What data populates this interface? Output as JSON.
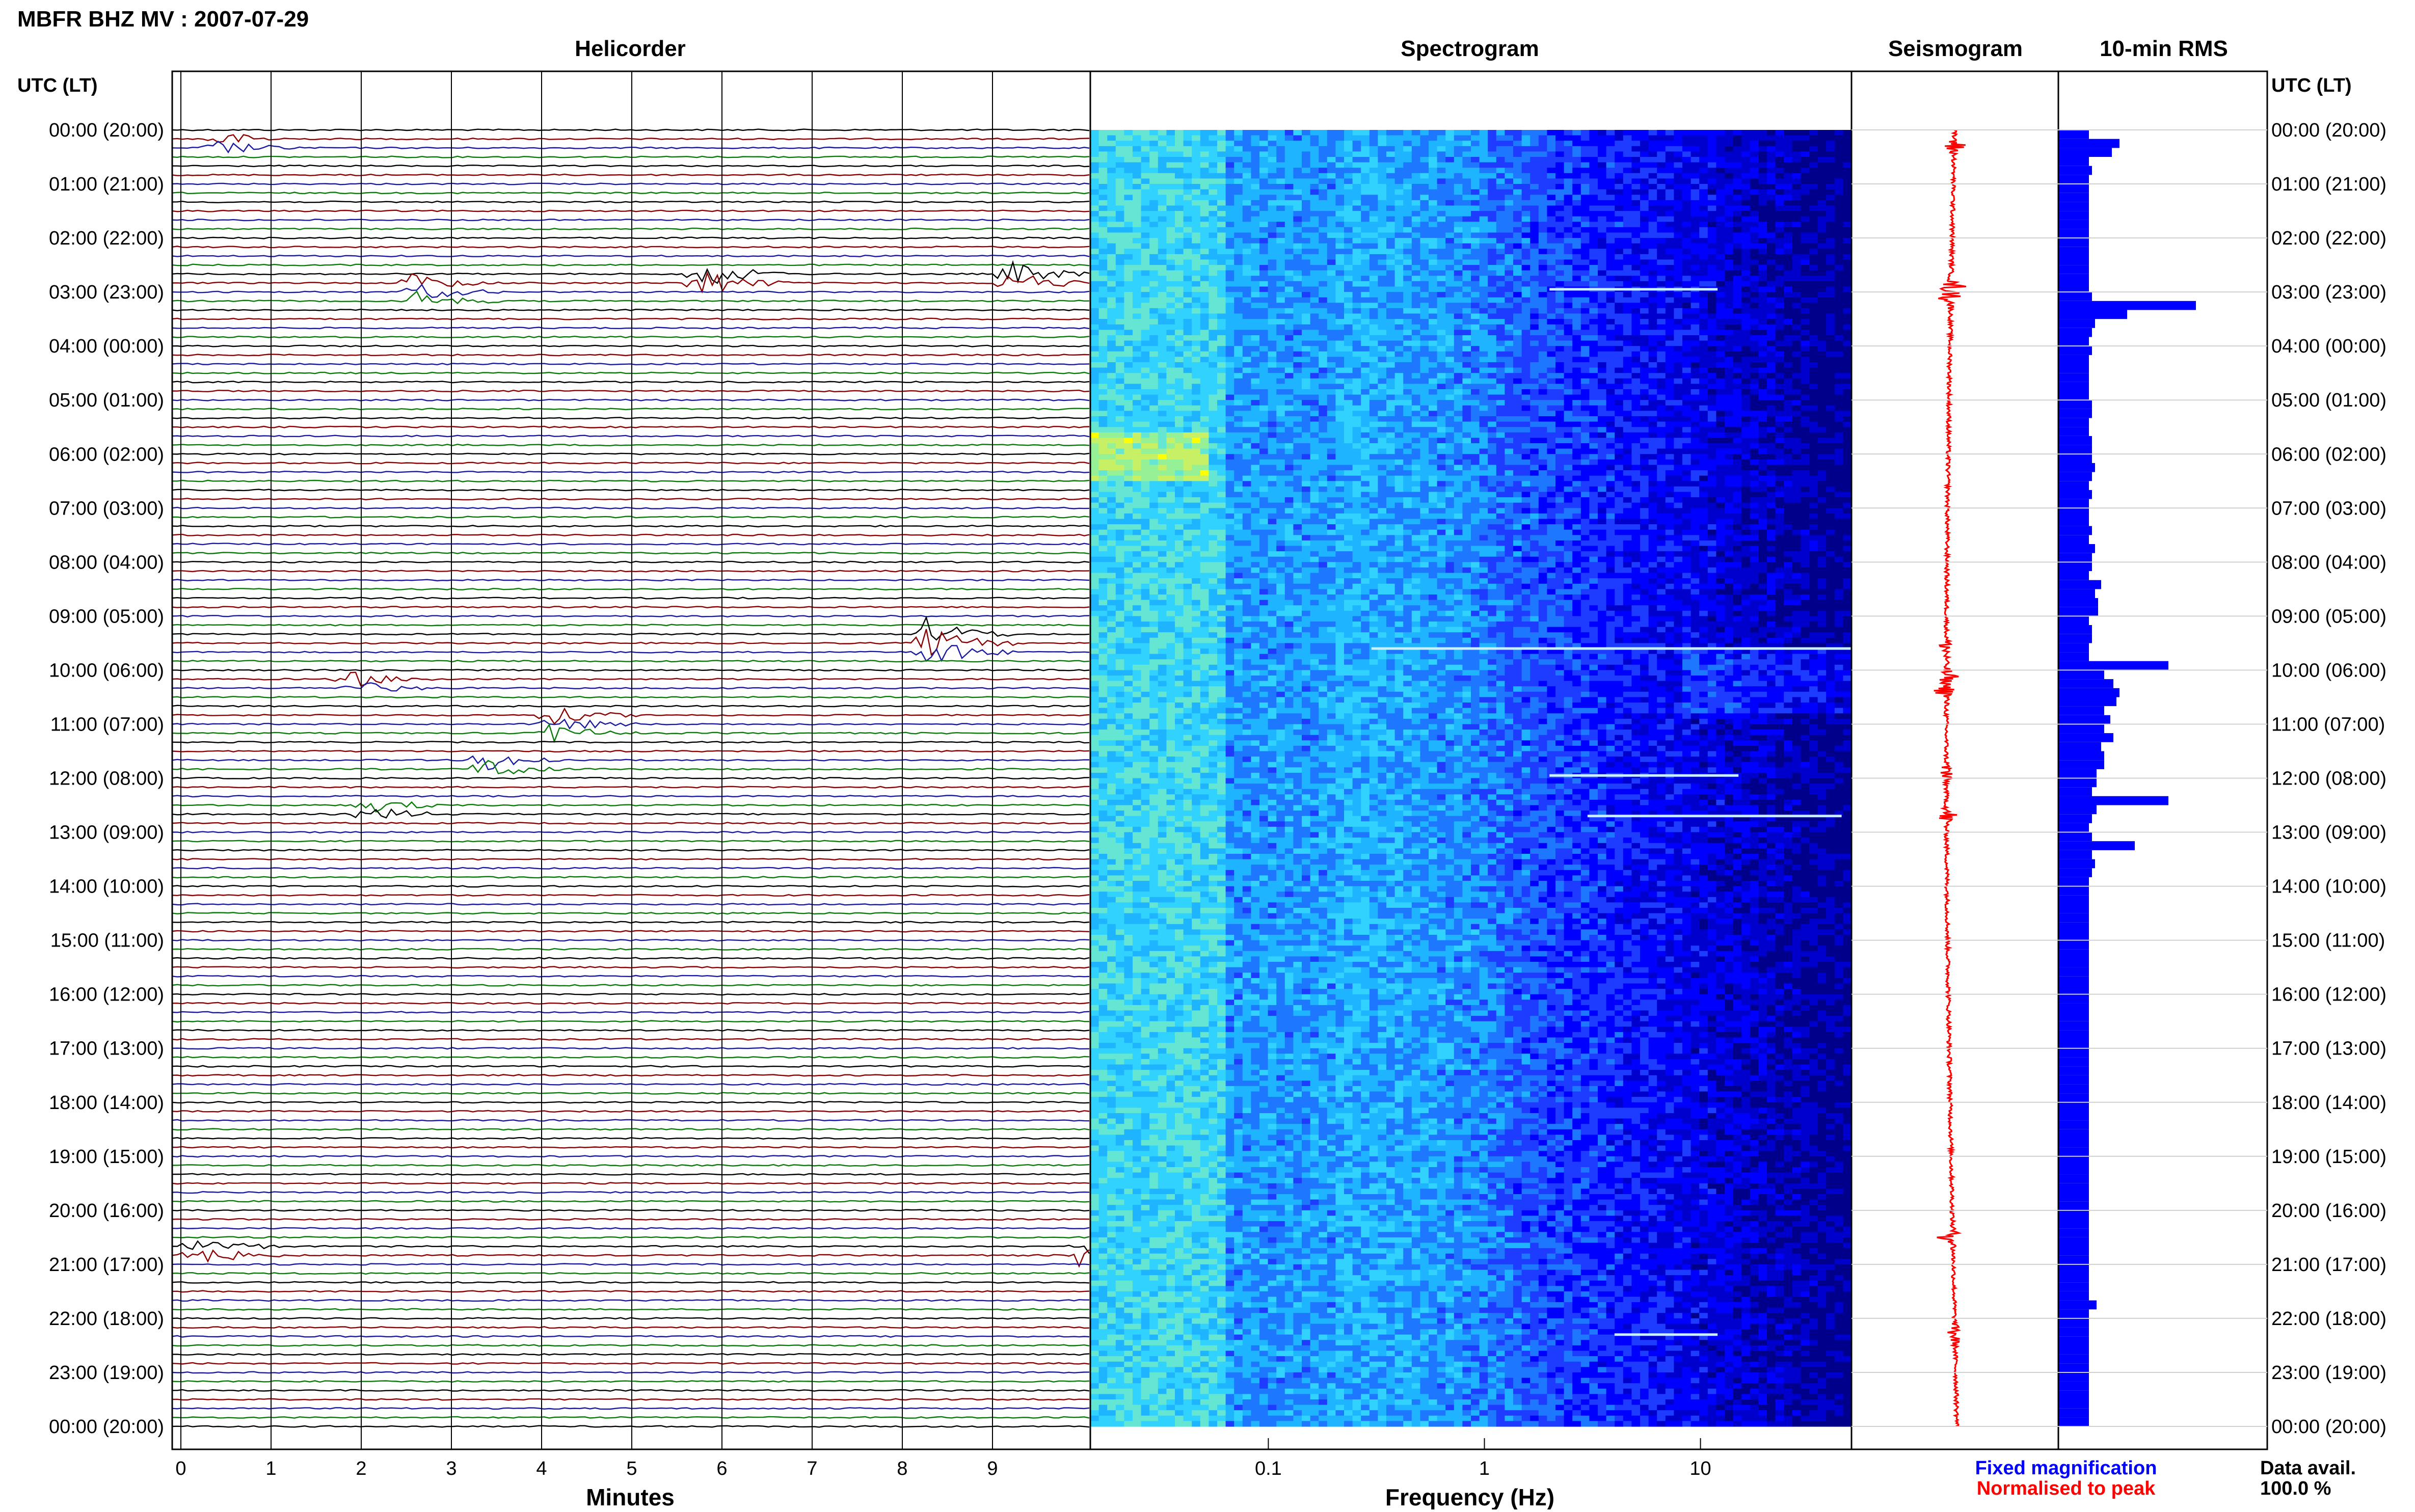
{
  "header": {
    "station_title": "MBFR BHZ MV : 2007-07-29",
    "utc_label_left": "UTC (LT)",
    "utc_label_right": "UTC (LT)"
  },
  "panels": {
    "helicorder": "Helicorder",
    "spectrogram": "Spectrogram",
    "seismogram": "Seismogram",
    "rms": "10-min RMS"
  },
  "axes": {
    "minutes_label": "Minutes",
    "frequency_label": "Frequency (Hz)"
  },
  "legend": {
    "fixed": "Fixed magnification",
    "fixed_color": "#0000ff",
    "normalised": "Normalised to peak",
    "normalised_color": "#ff0000"
  },
  "data_availability": {
    "label": "Data avail.",
    "value": "100.0 %"
  },
  "colors": {
    "trace_cycle": [
      "#000000",
      "#8b0000",
      "#1a1aa0",
      "#0a7a0a"
    ],
    "seismogram": "#ff0000",
    "rms_bar": "#0000ff",
    "spectrogram_low": "#00008b",
    "spectrogram_high": "#ffff00"
  },
  "chart_data": [
    {
      "type": "line",
      "name": "helicorder",
      "xlabel": "Minutes",
      "x_ticks": [
        0,
        1,
        2,
        3,
        4,
        5,
        6,
        7,
        8,
        9
      ],
      "xlim": [
        0,
        10
      ],
      "rows_per_hour": 6,
      "minutes_per_row": 10,
      "y_tick_labels": [
        "00:00 (20:00)",
        "01:00 (21:00)",
        "02:00 (22:00)",
        "03:00 (23:00)",
        "04:00 (00:00)",
        "05:00 (01:00)",
        "06:00 (02:00)",
        "07:00 (03:00)",
        "08:00 (04:00)",
        "09:00 (05:00)",
        "10:00 (06:00)",
        "11:00 (07:00)",
        "12:00 (08:00)",
        "13:00 (09:00)",
        "14:00 (10:00)",
        "15:00 (11:00)",
        "16:00 (12:00)",
        "17:00 (13:00)",
        "18:00 (14:00)",
        "19:00 (15:00)",
        "20:00 (16:00)",
        "21:00 (17:00)",
        "22:00 (18:00)",
        "23:00 (19:00)",
        "00:00 (20:00)"
      ],
      "events": [
        {
          "hour": 0.3,
          "minute": 0.3,
          "amplitude": 0.5
        },
        {
          "hour": 2.8,
          "minute": 9.1,
          "amplitude": 0.8
        },
        {
          "hour": 2.75,
          "minute": 5.7,
          "amplitude": 0.9
        },
        {
          "hour": 3.0,
          "minute": 2.5,
          "amplitude": 0.6
        },
        {
          "hour": 9.5,
          "minute": 8.2,
          "amplitude": 1.0
        },
        {
          "hour": 10.2,
          "minute": 1.8,
          "amplitude": 0.5
        },
        {
          "hour": 11.0,
          "minute": 4.0,
          "amplitude": 0.6
        },
        {
          "hour": 11.8,
          "minute": 3.3,
          "amplitude": 0.7
        },
        {
          "hour": 12.6,
          "minute": 2.0,
          "amplitude": 0.5
        },
        {
          "hour": 20.7,
          "minute": 0.1,
          "amplitude": 0.6
        },
        {
          "hour": 20.7,
          "minute": 9.9,
          "amplitude": 0.6
        }
      ]
    },
    {
      "type": "heatmap",
      "name": "spectrogram",
      "xlabel": "Frequency (Hz)",
      "x_scale": "log",
      "x_tick_values": [
        0.1,
        1,
        10
      ],
      "x_tick_labels": [
        "0.1",
        "1",
        "10"
      ],
      "xlim": [
        0.015,
        50
      ],
      "ylim_hours": [
        0,
        24
      ],
      "y_tick_labels": [
        "00:00 (20:00)",
        "01:00 (21:00)",
        "02:00 (22:00)",
        "03:00 (23:00)",
        "04:00 (00:00)",
        "05:00 (01:00)",
        "06:00 (02:00)",
        "07:00 (03:00)",
        "08:00 (04:00)",
        "09:00 (05:00)",
        "10:00 (06:00)",
        "11:00 (07:00)",
        "12:00 (08:00)",
        "13:00 (09:00)",
        "14:00 (10:00)",
        "15:00 (11:00)",
        "16:00 (12:00)",
        "17:00 (13:00)",
        "18:00 (14:00)",
        "19:00 (15:00)",
        "20:00 (16:00)",
        "21:00 (17:00)",
        "22:00 (18:00)",
        "23:00 (19:00)",
        "00:00 (20:00)"
      ]
    },
    {
      "type": "line",
      "name": "seismogram",
      "ylim_hours": [
        0,
        24
      ],
      "events_hours": [
        0.3,
        2.9,
        3.1,
        9.6,
        10.1,
        10.4,
        11.9,
        12.7,
        20.5,
        22.3
      ]
    },
    {
      "type": "bar",
      "name": "10-min RMS",
      "orientation": "horizontal",
      "bins_per_hour": 6,
      "ylim_hours": [
        0,
        24
      ],
      "values": [
        0.2,
        0.4,
        0.35,
        0.2,
        0.22,
        0.2,
        0.2,
        0.2,
        0.2,
        0.2,
        0.2,
        0.2,
        0.2,
        0.2,
        0.2,
        0.2,
        0.2,
        0.2,
        0.22,
        0.9,
        0.45,
        0.24,
        0.22,
        0.2,
        0.22,
        0.2,
        0.2,
        0.2,
        0.2,
        0.2,
        0.22,
        0.22,
        0.2,
        0.2,
        0.22,
        0.22,
        0.22,
        0.24,
        0.22,
        0.2,
        0.22,
        0.2,
        0.2,
        0.2,
        0.22,
        0.2,
        0.24,
        0.22,
        0.22,
        0.2,
        0.28,
        0.24,
        0.26,
        0.26,
        0.2,
        0.22,
        0.22,
        0.2,
        0.2,
        0.72,
        0.3,
        0.36,
        0.4,
        0.38,
        0.3,
        0.34,
        0.3,
        0.36,
        0.28,
        0.3,
        0.3,
        0.25,
        0.25,
        0.22,
        0.72,
        0.25,
        0.22,
        0.2,
        0.22,
        0.5,
        0.22,
        0.24,
        0.22,
        0.2,
        0.2,
        0.2,
        0.2,
        0.2,
        0.2,
        0.2,
        0.2,
        0.2,
        0.2,
        0.2,
        0.2,
        0.2,
        0.2,
        0.2,
        0.2,
        0.2,
        0.2,
        0.2,
        0.2,
        0.2,
        0.2,
        0.2,
        0.2,
        0.2,
        0.2,
        0.2,
        0.2,
        0.2,
        0.2,
        0.2,
        0.2,
        0.2,
        0.2,
        0.2,
        0.2,
        0.2,
        0.2,
        0.2,
        0.2,
        0.2,
        0.2,
        0.2,
        0.2,
        0.2,
        0.2,
        0.2,
        0.25,
        0.2,
        0.2,
        0.2,
        0.2,
        0.2,
        0.2,
        0.2,
        0.2,
        0.2,
        0.2,
        0.2,
        0.2,
        0.2
      ]
    }
  ]
}
